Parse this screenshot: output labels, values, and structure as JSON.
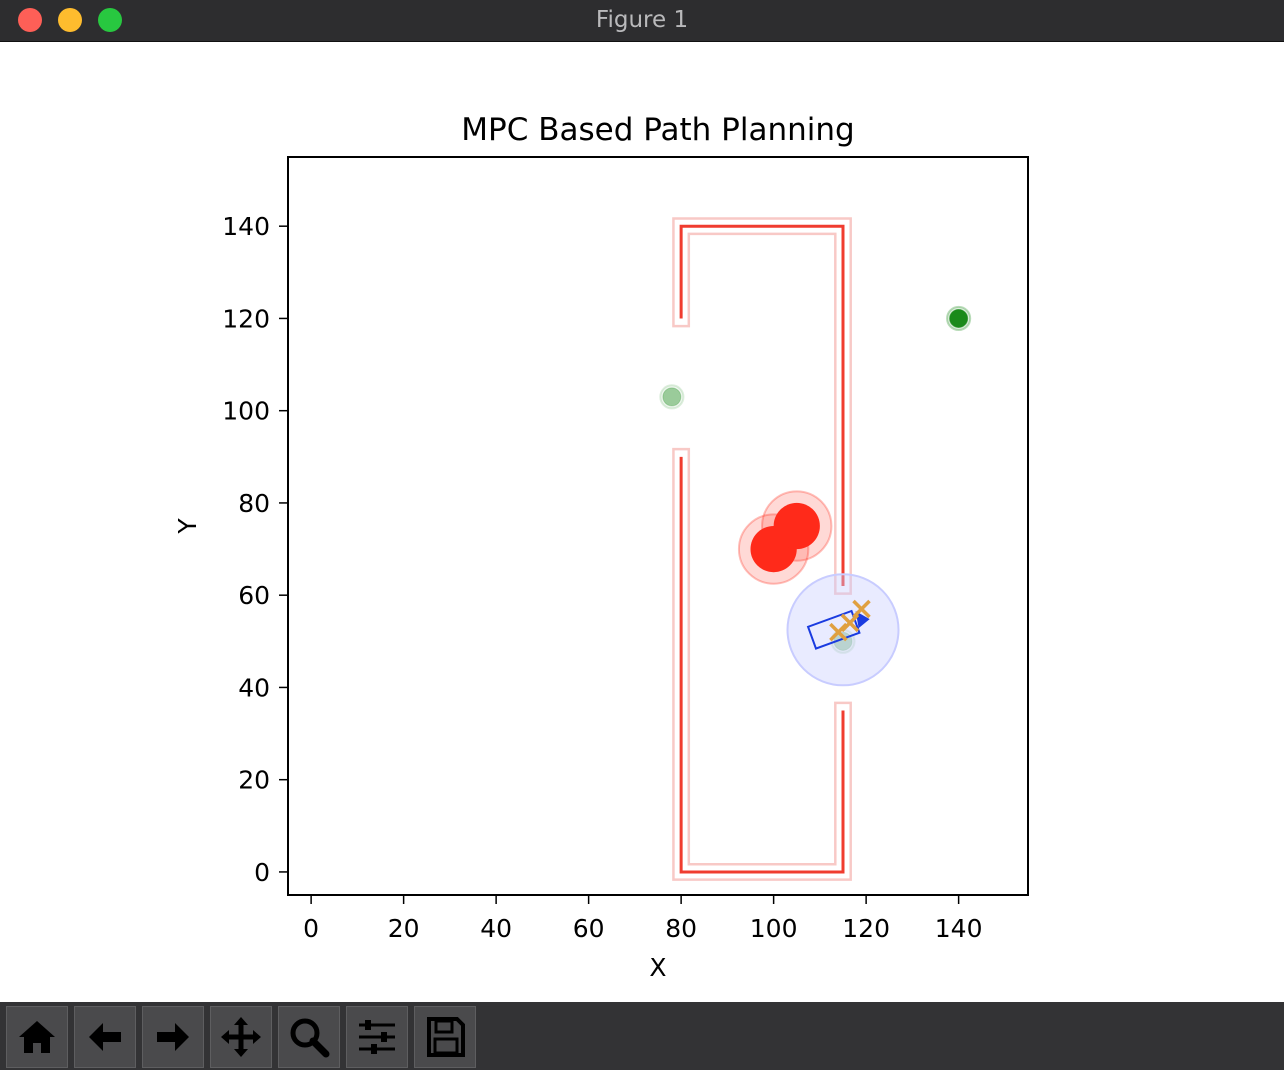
{
  "window": {
    "title": "Figure 1"
  },
  "toolbar": {
    "buttons": [
      {
        "icon": "home-icon",
        "action": "home"
      },
      {
        "icon": "back-arrow-icon",
        "action": "back"
      },
      {
        "icon": "forward-arrow-icon",
        "action": "forward"
      },
      {
        "icon": "pan-move-icon",
        "action": "pan"
      },
      {
        "icon": "zoom-magnifier-icon",
        "action": "zoom"
      },
      {
        "icon": "configure-subplots-icon",
        "action": "configure"
      },
      {
        "icon": "save-figure-icon",
        "action": "save"
      }
    ]
  },
  "chart_data": {
    "type": "scatter",
    "title": "MPC Based Path Planning",
    "xlabel": "X",
    "ylabel": "Y",
    "xlim": [
      -5,
      155
    ],
    "ylim": [
      -5,
      155
    ],
    "xticks": [
      0,
      20,
      40,
      60,
      80,
      100,
      120,
      140
    ],
    "yticks": [
      0,
      20,
      40,
      60,
      80,
      100,
      120,
      140
    ],
    "colors": {
      "walls": "#f03c2f",
      "wall_buffer": "#f5b7b3",
      "goal": "#1a8a1a",
      "obstacle": "#ff2a1a",
      "robot": "#1a3be0",
      "robot_zone": "#c8ccff",
      "predicted": "#e0a040"
    },
    "walls": [
      {
        "x": [
          80,
          80,
          115,
          115
        ],
        "y": [
          120,
          140,
          140,
          62
        ]
      },
      {
        "x": [
          80,
          80,
          115,
          115
        ],
        "y": [
          90,
          0,
          0,
          35
        ]
      }
    ],
    "obstacles": [
      {
        "x": 100,
        "y": 70,
        "r": 5
      },
      {
        "x": 105,
        "y": 75,
        "r": 5
      }
    ],
    "goals": [
      {
        "x": 140,
        "y": 120,
        "opacity": 1.0
      },
      {
        "x": 78,
        "y": 103,
        "opacity": 0.4
      },
      {
        "x": 115,
        "y": 50,
        "opacity": 0.3
      }
    ],
    "robot": {
      "x": 113,
      "y": 52.5,
      "heading_deg": 20,
      "zone_radius": 12
    },
    "predicted_points": [
      {
        "x": 114,
        "y": 52
      },
      {
        "x": 116.5,
        "y": 54
      },
      {
        "x": 119,
        "y": 57
      }
    ]
  }
}
